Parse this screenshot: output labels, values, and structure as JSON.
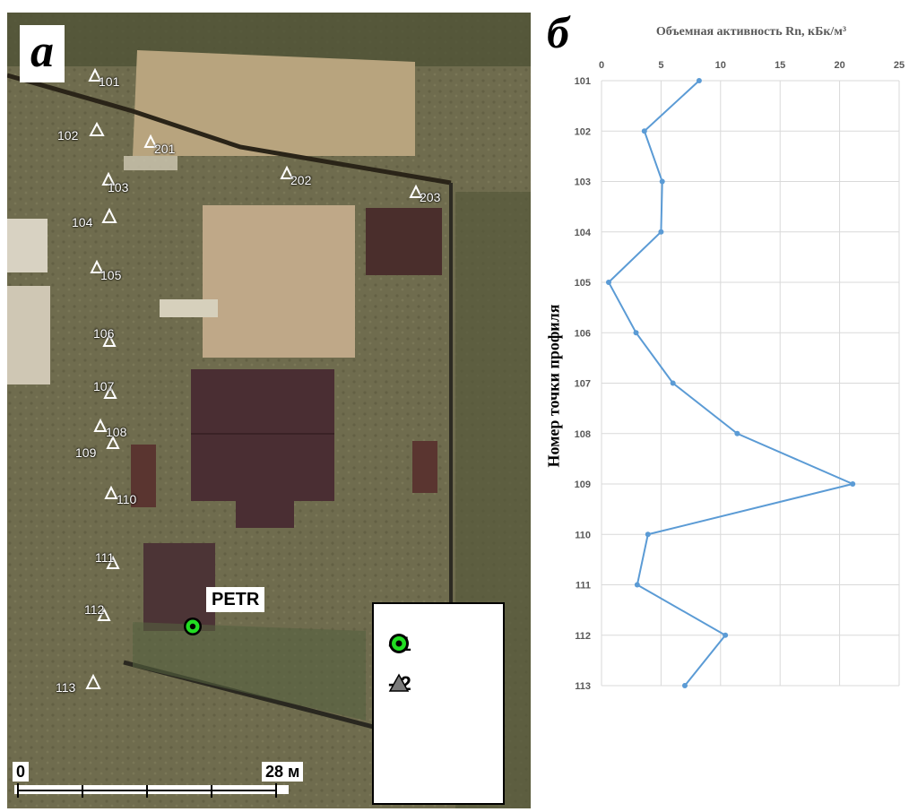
{
  "panel_a": {
    "letter": "a",
    "station_label": "PETR",
    "points": [
      {
        "id": "101",
        "label": "101"
      },
      {
        "id": "102",
        "label": "102"
      },
      {
        "id": "103",
        "label": "103"
      },
      {
        "id": "104",
        "label": "104"
      },
      {
        "id": "105",
        "label": "105"
      },
      {
        "id": "106",
        "label": "106"
      },
      {
        "id": "107",
        "label": "107"
      },
      {
        "id": "108",
        "label": "108"
      },
      {
        "id": "109",
        "label": "109"
      },
      {
        "id": "110",
        "label": "110"
      },
      {
        "id": "111",
        "label": "111"
      },
      {
        "id": "112",
        "label": "112"
      },
      {
        "id": "113",
        "label": "113"
      },
      {
        "id": "201",
        "label": "201"
      },
      {
        "id": "202",
        "label": "202"
      },
      {
        "id": "203",
        "label": "203"
      }
    ],
    "legend": [
      {
        "symbol": "green-station-marker",
        "text": "- 1"
      },
      {
        "symbol": "triangle-marker",
        "text": "- 2"
      }
    ],
    "scale": {
      "start_label": "0",
      "end_label": "28 м"
    }
  },
  "panel_b": {
    "letter": "б"
  },
  "chart_data": {
    "type": "line",
    "title": "Объемная активность Rn, кБк/м³",
    "xlabel": "Объемная активность Rn, кБк/м³",
    "ylabel": "Номер точки профиля",
    "x_axis_position": "top",
    "xlim": [
      0,
      25
    ],
    "x_ticks": [
      0,
      5,
      10,
      15,
      20,
      25
    ],
    "categories": [
      "101",
      "102",
      "103",
      "104",
      "105",
      "106",
      "107",
      "108",
      "109",
      "110",
      "111",
      "112",
      "113"
    ],
    "values": [
      8.2,
      3.6,
      5.1,
      5.0,
      0.6,
      2.9,
      6.0,
      11.4,
      21.1,
      3.9,
      3.0,
      10.4,
      7.0
    ],
    "grid": true,
    "line_color": "#5b9bd5"
  }
}
